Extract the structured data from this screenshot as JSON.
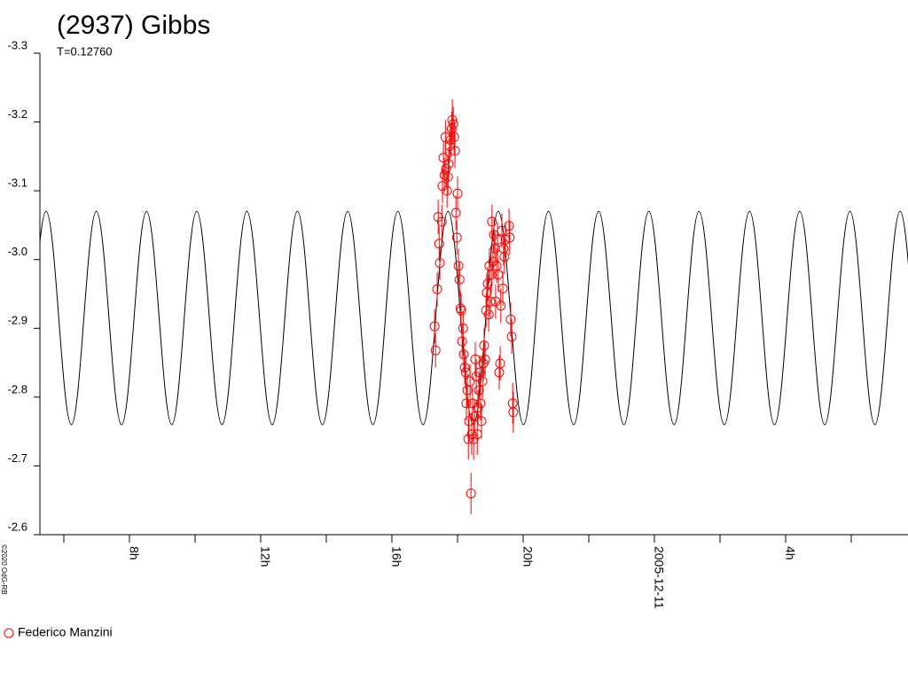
{
  "chart_data": {
    "type": "scatter",
    "title": "(2937) Gibbs",
    "subtitle": "T=0.12760",
    "credit": "©2020 OdG-RB",
    "xlim": [
      5.27,
      31.73
    ],
    "xticks": [
      {
        "value": 8,
        "label": "8h"
      },
      {
        "value": 12,
        "label": "12h"
      },
      {
        "value": 16,
        "label": "16h"
      },
      {
        "value": 20,
        "label": "20h"
      },
      {
        "value": 24,
        "label": "2005-12-11"
      },
      {
        "value": 28,
        "label": "4h"
      }
    ],
    "xminor_ticks": [
      6,
      10,
      14,
      18,
      22,
      26,
      30
    ],
    "ylim": [
      -3.3,
      -2.6
    ],
    "y_inverted": true,
    "yticks": [
      -3.3,
      -3.2,
      -3.1,
      {
        "value": -3,
        "label": "-3.0"
      },
      -2.9,
      -2.8,
      -2.7,
      -2.6
    ],
    "model": {
      "type": "line",
      "color": "#000000",
      "x": [
        4.69,
        5.46,
        6.23,
        6.99,
        7.76,
        8.52,
        9.29,
        10.05,
        10.82,
        11.58,
        12.35,
        13.12,
        13.88,
        14.65,
        15.42,
        16.18,
        16.95,
        17.71,
        18.48,
        19.24,
        20.01,
        20.77,
        21.54,
        22.3,
        23.07,
        23.83,
        24.6,
        25.36,
        26.13,
        26.9,
        27.66,
        28.43,
        29.19,
        29.96,
        30.72,
        31.49,
        32.25
      ],
      "values": [
        -2.76,
        -3.07,
        -2.76,
        -3.07,
        -2.76,
        -3.07,
        -2.76,
        -3.07,
        -2.76,
        -3.07,
        -2.76,
        -3.07,
        -2.76,
        -3.07,
        -2.76,
        -3.07,
        -2.76,
        -3.07,
        -2.76,
        -3.07,
        -2.76,
        -3.07,
        -2.76,
        -3.07,
        -2.76,
        -3.07,
        -2.76,
        -3.07,
        -2.76,
        -3.07,
        -2.76,
        -3.07,
        -2.76,
        -3.07,
        -2.76,
        -3.07,
        -2.76
      ]
    },
    "series": [
      {
        "name": "Federico Manzini",
        "color": "#ff0000",
        "x": [
          17.3,
          17.33,
          17.38,
          17.41,
          17.44,
          17.46,
          17.52,
          17.54,
          17.57,
          17.6,
          17.63,
          17.65,
          17.68,
          17.71,
          17.73,
          17.76,
          17.79,
          17.82,
          17.84,
          17.87,
          17.9,
          17.92,
          17.95,
          17.98,
          18.0,
          18.03,
          18.06,
          18.09,
          18.11,
          18.14,
          18.17,
          18.19,
          18.22,
          18.25,
          18.27,
          18.3,
          18.33,
          18.35,
          18.38,
          18.41,
          18.43,
          18.46,
          18.49,
          18.52,
          18.54,
          18.57,
          18.6,
          18.62,
          18.65,
          18.68,
          18.7,
          18.73,
          18.76,
          18.79,
          18.81,
          18.84,
          18.87,
          18.89,
          18.92,
          18.95,
          18.97,
          19.0,
          19.03,
          19.05,
          19.08,
          19.11,
          19.14,
          19.16,
          19.19,
          19.22,
          19.24,
          19.27,
          19.3,
          19.32,
          19.35,
          19.38,
          19.4,
          19.43,
          19.46,
          19.57,
          19.59,
          19.62,
          19.65,
          19.68,
          19.7
        ],
        "values": [
          -2.903,
          -2.868,
          -2.957,
          -3.062,
          -3.023,
          -2.995,
          -3.055,
          -3.107,
          -3.148,
          -3.123,
          -3.178,
          -3.132,
          -3.1,
          -3.12,
          -3.139,
          -3.165,
          -3.174,
          -3.19,
          -3.203,
          -3.197,
          -3.178,
          -3.158,
          -3.068,
          -3.032,
          -3.096,
          -2.991,
          -2.971,
          -2.929,
          -2.926,
          -2.881,
          -2.9,
          -2.862,
          -2.843,
          -2.836,
          -2.791,
          -2.81,
          -2.739,
          -2.765,
          -2.823,
          -2.66,
          -2.746,
          -2.791,
          -2.739,
          -2.772,
          -2.855,
          -2.83,
          -2.746,
          -2.785,
          -2.81,
          -2.836,
          -2.791,
          -2.765,
          -2.823,
          -2.849,
          -2.875,
          -2.855,
          -2.926,
          -2.952,
          -2.965,
          -2.92,
          -2.991,
          -2.939,
          -2.978,
          -3.055,
          -2.997,
          -3.036,
          -3.016,
          -2.939,
          -2.991,
          -3.029,
          -2.978,
          -2.836,
          -2.849,
          -2.933,
          -3.042,
          -2.958,
          -3.016,
          -3.004,
          -3.029,
          -3.049,
          -3.032,
          -2.913,
          -2.888,
          -2.791,
          -2.778
        ],
        "errors": [
          0.025,
          0.025,
          0.025,
          0.025,
          0.025,
          0.025,
          0.025,
          0.025,
          0.025,
          0.025,
          0.025,
          0.025,
          0.025,
          0.025,
          0.025,
          0.025,
          0.025,
          0.025,
          0.03,
          0.025,
          0.025,
          0.025,
          0.025,
          0.025,
          0.025,
          0.025,
          0.025,
          0.025,
          0.025,
          0.025,
          0.025,
          0.025,
          0.025,
          0.025,
          0.025,
          0.025,
          0.03,
          0.03,
          0.025,
          0.03,
          0.03,
          0.025,
          0.03,
          0.025,
          0.025,
          0.025,
          0.03,
          0.025,
          0.025,
          0.025,
          0.025,
          0.025,
          0.025,
          0.025,
          0.025,
          0.025,
          0.025,
          0.025,
          0.025,
          0.025,
          0.025,
          0.025,
          0.025,
          0.025,
          0.025,
          0.025,
          0.025,
          0.025,
          0.025,
          0.025,
          0.025,
          0.025,
          0.025,
          0.025,
          0.025,
          0.025,
          0.025,
          0.025,
          0.025,
          0.025,
          0.025,
          0.025,
          0.025,
          0.03,
          0.03
        ]
      }
    ]
  }
}
